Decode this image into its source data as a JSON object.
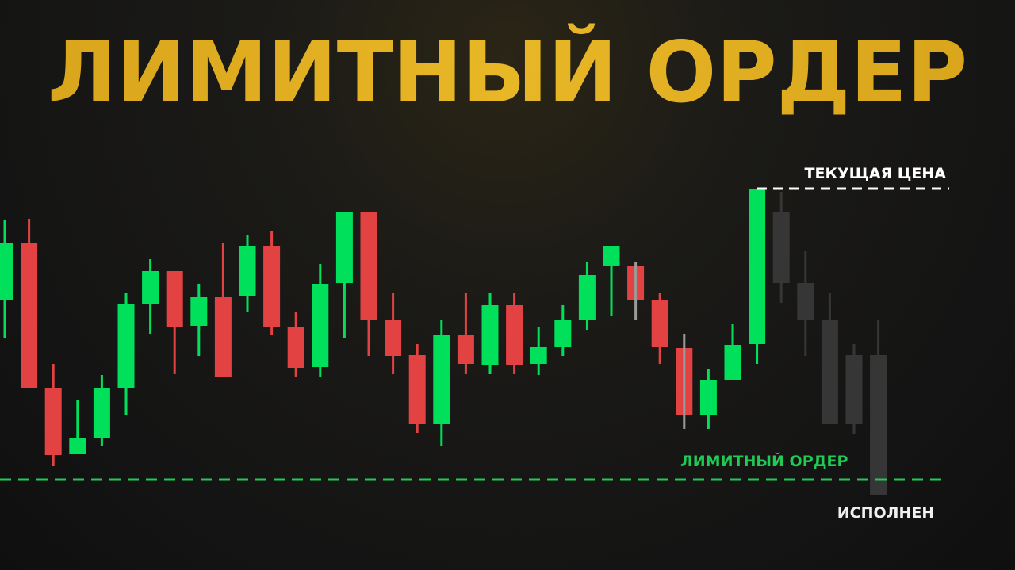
{
  "title": "ЛИМИТНЫЙ ОРДЕР",
  "colors": {
    "title": "#E3B223",
    "bull": "#00E05A",
    "bear": "#E24242",
    "future": "#363636",
    "gray_wick": "#9A9A9A",
    "current_price_line": "#FFFFFF",
    "limit_line": "#1FCB55",
    "background": "#141414"
  },
  "chart_data": {
    "type": "candlestick",
    "title": "ЛИМИТНЫЙ ОРДЕР",
    "xlabel": "",
    "ylabel": "",
    "axes_visible": false,
    "grid": false,
    "ylim": [
      0,
      50
    ],
    "candles": [
      {
        "o": 32.2,
        "h": 42.3,
        "l": 27.4,
        "c": 39.4
      },
      {
        "o": 39.4,
        "h": 42.4,
        "l": 21.1,
        "c": 21.1
      },
      {
        "o": 21.1,
        "h": 24.1,
        "l": 11.2,
        "c": 12.6
      },
      {
        "o": 12.7,
        "h": 19.6,
        "l": 12.7,
        "c": 14.8
      },
      {
        "o": 14.8,
        "h": 22.7,
        "l": 13.8,
        "c": 21.1
      },
      {
        "o": 21.1,
        "h": 33.0,
        "l": 17.7,
        "c": 31.6
      },
      {
        "o": 31.6,
        "h": 37.3,
        "l": 27.9,
        "c": 35.8
      },
      {
        "o": 35.8,
        "h": 35.8,
        "l": 22.8,
        "c": 28.8
      },
      {
        "o": 28.9,
        "h": 34.2,
        "l": 25.1,
        "c": 32.5
      },
      {
        "o": 32.5,
        "h": 39.4,
        "l": 22.4,
        "c": 22.4
      },
      {
        "o": 32.6,
        "h": 40.3,
        "l": 30.7,
        "c": 39.0
      },
      {
        "o": 39.0,
        "h": 40.8,
        "l": 27.8,
        "c": 28.8
      },
      {
        "o": 28.8,
        "h": 30.7,
        "l": 22.4,
        "c": 23.6
      },
      {
        "o": 23.7,
        "h": 36.7,
        "l": 22.4,
        "c": 34.2
      },
      {
        "o": 34.3,
        "h": 43.3,
        "l": 27.4,
        "c": 43.3
      },
      {
        "o": 43.3,
        "h": 43.3,
        "l": 25.1,
        "c": 29.6
      },
      {
        "o": 29.6,
        "h": 33.1,
        "l": 22.8,
        "c": 25.1
      },
      {
        "o": 25.2,
        "h": 26.6,
        "l": 15.4,
        "c": 16.5
      },
      {
        "o": 16.5,
        "h": 29.6,
        "l": 13.7,
        "c": 27.8
      },
      {
        "o": 27.8,
        "h": 33.1,
        "l": 22.8,
        "c": 24.1
      },
      {
        "o": 24.0,
        "h": 33.1,
        "l": 22.8,
        "c": 31.5
      },
      {
        "o": 31.5,
        "h": 33.1,
        "l": 22.8,
        "c": 24.0
      },
      {
        "o": 24.1,
        "h": 28.8,
        "l": 22.7,
        "c": 26.2
      },
      {
        "o": 26.2,
        "h": 31.5,
        "l": 25.1,
        "c": 29.6
      },
      {
        "o": 29.6,
        "h": 37.0,
        "l": 28.4,
        "c": 35.3
      },
      {
        "o": 36.4,
        "h": 39.0,
        "l": 30.1,
        "c": 39.0
      },
      {
        "o": 36.4,
        "h": 37.0,
        "l": 29.6,
        "c": 32.1,
        "gray_wick": true
      },
      {
        "o": 32.1,
        "h": 33.1,
        "l": 24.1,
        "c": 26.2
      },
      {
        "o": 26.1,
        "h": 27.9,
        "l": 15.9,
        "c": 17.6,
        "gray_wick": true
      },
      {
        "o": 17.6,
        "h": 23.5,
        "l": 15.9,
        "c": 22.1
      },
      {
        "o": 22.1,
        "h": 29.1,
        "l": 22.1,
        "c": 26.5
      },
      {
        "o": 26.6,
        "h": 46.2,
        "l": 24.1,
        "c": 46.2
      },
      {
        "o": 43.2,
        "h": 45.8,
        "l": 31.8,
        "c": 34.3,
        "future": true
      },
      {
        "o": 34.3,
        "h": 38.3,
        "l": 25.1,
        "c": 29.6,
        "future": true
      },
      {
        "o": 29.6,
        "h": 33.1,
        "l": 16.5,
        "c": 16.5,
        "future": true
      },
      {
        "o": 25.2,
        "h": 26.6,
        "l": 15.3,
        "c": 16.5,
        "future": true
      },
      {
        "o": 25.2,
        "h": 29.6,
        "l": 7.5,
        "c": 7.5,
        "future": true
      }
    ],
    "levels": [
      {
        "label": "ТЕКУЩАЯ ЦЕНА",
        "price": 46.2,
        "style": "dashed",
        "color": "#FFFFFF"
      },
      {
        "label": "ЛИМИТНЫЙ ОРДЕР",
        "price": 9.5,
        "style": "dashed",
        "color": "#1FCB55"
      }
    ],
    "annotations": [
      "ИСПОЛНЕН"
    ]
  }
}
